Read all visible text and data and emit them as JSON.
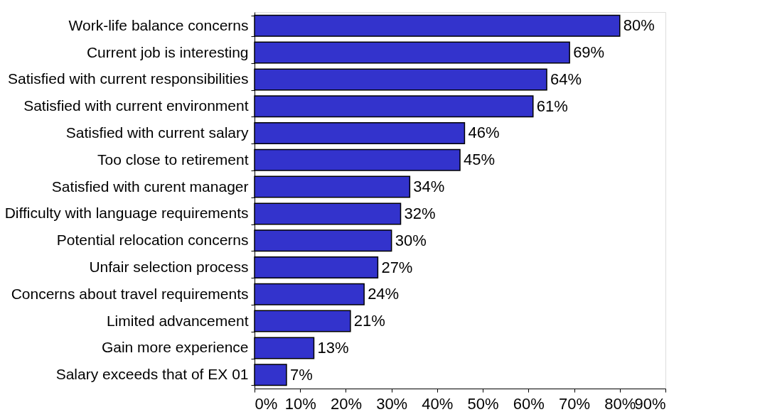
{
  "chart_data": {
    "type": "bar",
    "orientation": "horizontal",
    "categories": [
      "Work-life balance concerns",
      "Current job is interesting",
      "Satisfied  with current responsibilities",
      "Satisfied with current environment",
      "Satisfied  with current salary",
      "Too close to retirement",
      "Satisfied with curent manager",
      "Difficulty with language requirements",
      "Potential relocation concerns",
      "Unfair selection process",
      "Concerns about travel requirements",
      "Limited advancement",
      "Gain more experience",
      "Salary exceeds that of EX 01"
    ],
    "values": [
      80,
      69,
      64,
      61,
      46,
      45,
      34,
      32,
      30,
      27,
      24,
      21,
      13,
      7
    ],
    "value_labels": [
      "80%",
      "69%",
      "64%",
      "61%",
      "46%",
      "45%",
      "34%",
      "32%",
      "30%",
      "27%",
      "24%",
      "21%",
      "13%",
      "7%"
    ],
    "color": "#3333cc",
    "xlim": [
      0,
      90
    ],
    "xticks": [
      {
        "value": 0,
        "label": "0%"
      },
      {
        "value": 10,
        "label": "10%"
      },
      {
        "value": 20,
        "label": "20%"
      },
      {
        "value": 30,
        "label": "30%"
      },
      {
        "value": 40,
        "label": "40%"
      },
      {
        "value": 50,
        "label": "50%"
      },
      {
        "value": 60,
        "label": "60%"
      },
      {
        "value": 70,
        "label": "70%"
      },
      {
        "value": 80,
        "label": "80%"
      },
      {
        "value": 90,
        "label": "90%"
      }
    ],
    "grid": false
  }
}
